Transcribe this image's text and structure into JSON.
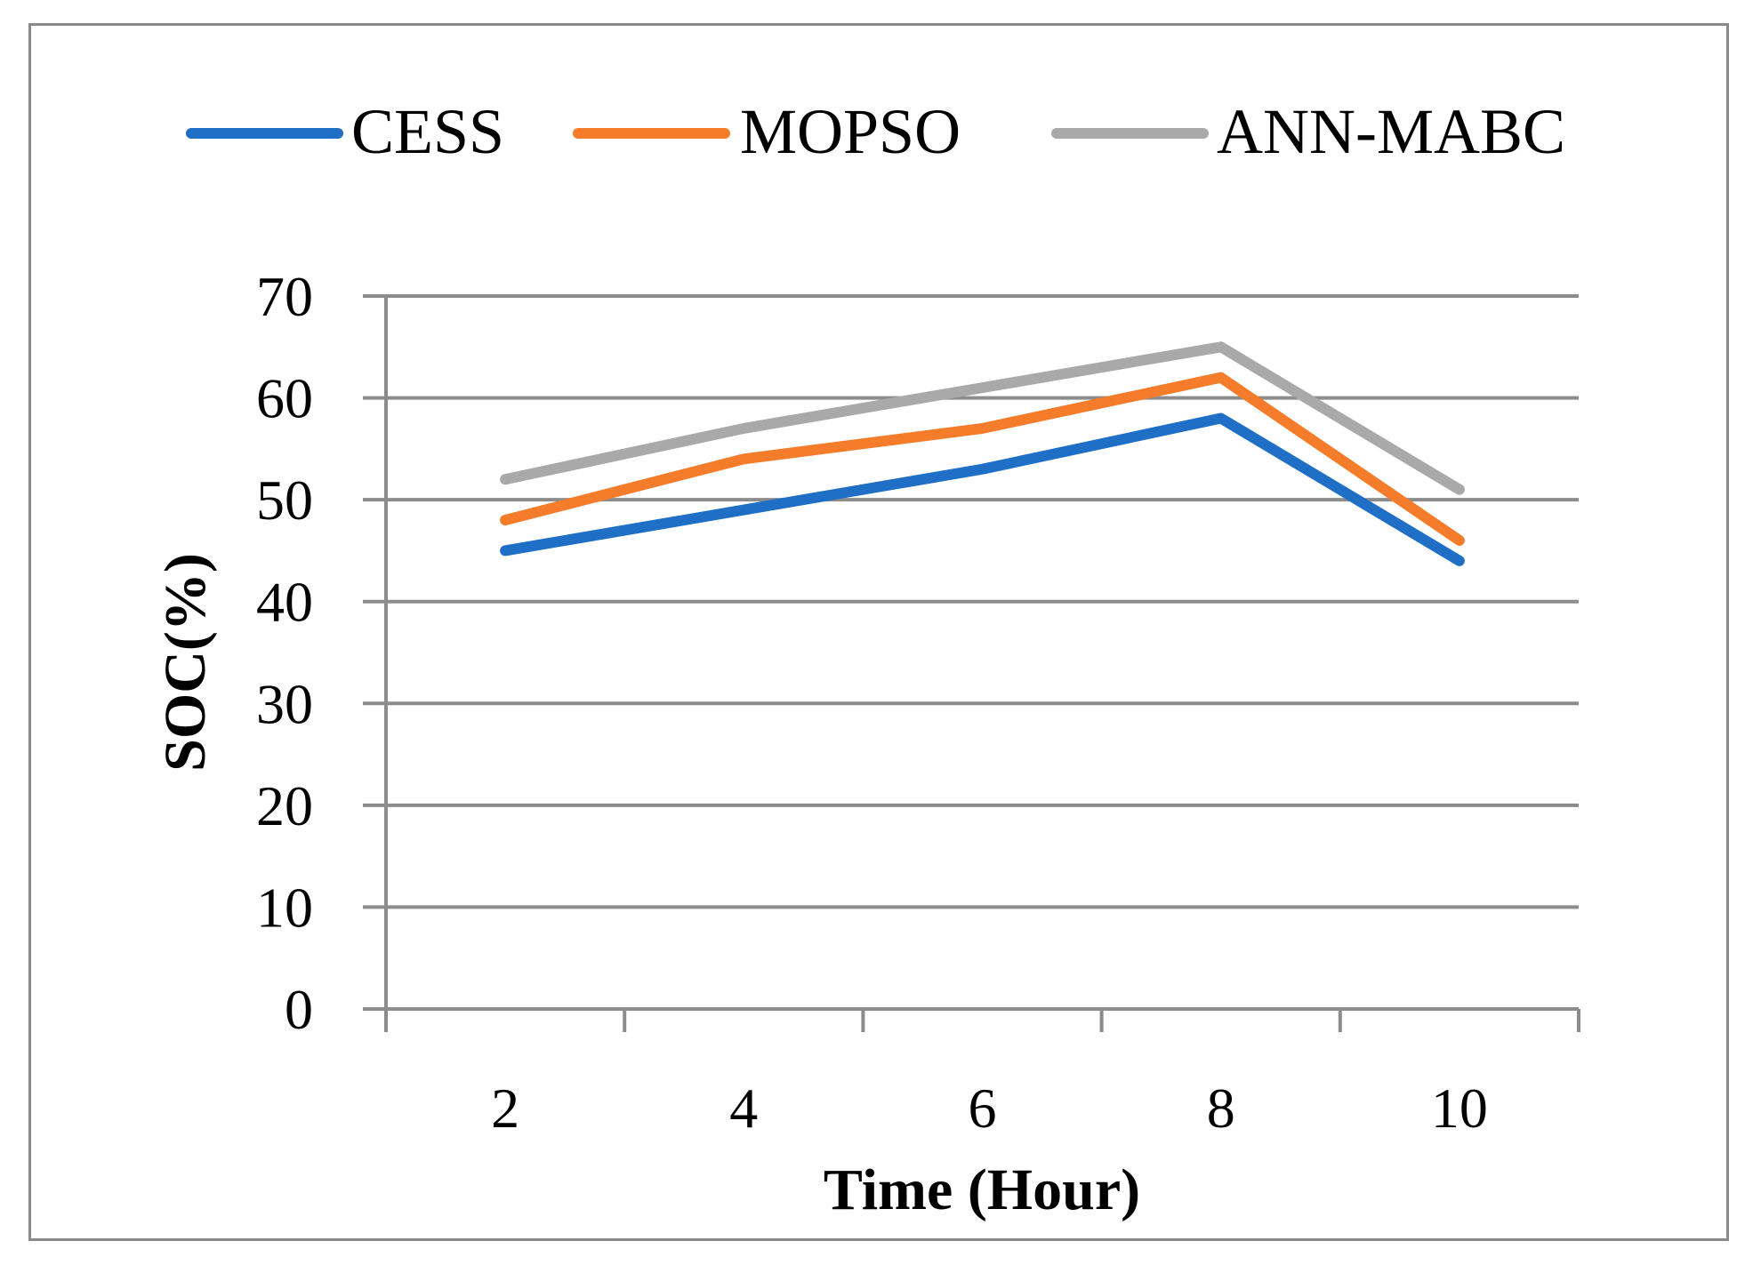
{
  "chart_data": {
    "type": "line",
    "xlabel": "Time (Hour)",
    "ylabel": "SOC(%)",
    "categories": [
      "2",
      "4",
      "6",
      "8",
      "10"
    ],
    "ylim": [
      0,
      70
    ],
    "yticks": [
      "0",
      "10",
      "20",
      "30",
      "40",
      "50",
      "60",
      "70"
    ],
    "grid": true,
    "legend_position": "top",
    "series": [
      {
        "name": "CESS",
        "color": "#1f6fc6",
        "values": [
          45,
          49,
          53,
          58,
          44
        ]
      },
      {
        "name": "MOPSO",
        "color": "#f57c2a",
        "values": [
          48,
          54,
          57,
          62,
          46
        ]
      },
      {
        "name": "ANN-MABC",
        "color": "#a9a9a9",
        "values": [
          52,
          57,
          61,
          65,
          51
        ]
      }
    ]
  }
}
